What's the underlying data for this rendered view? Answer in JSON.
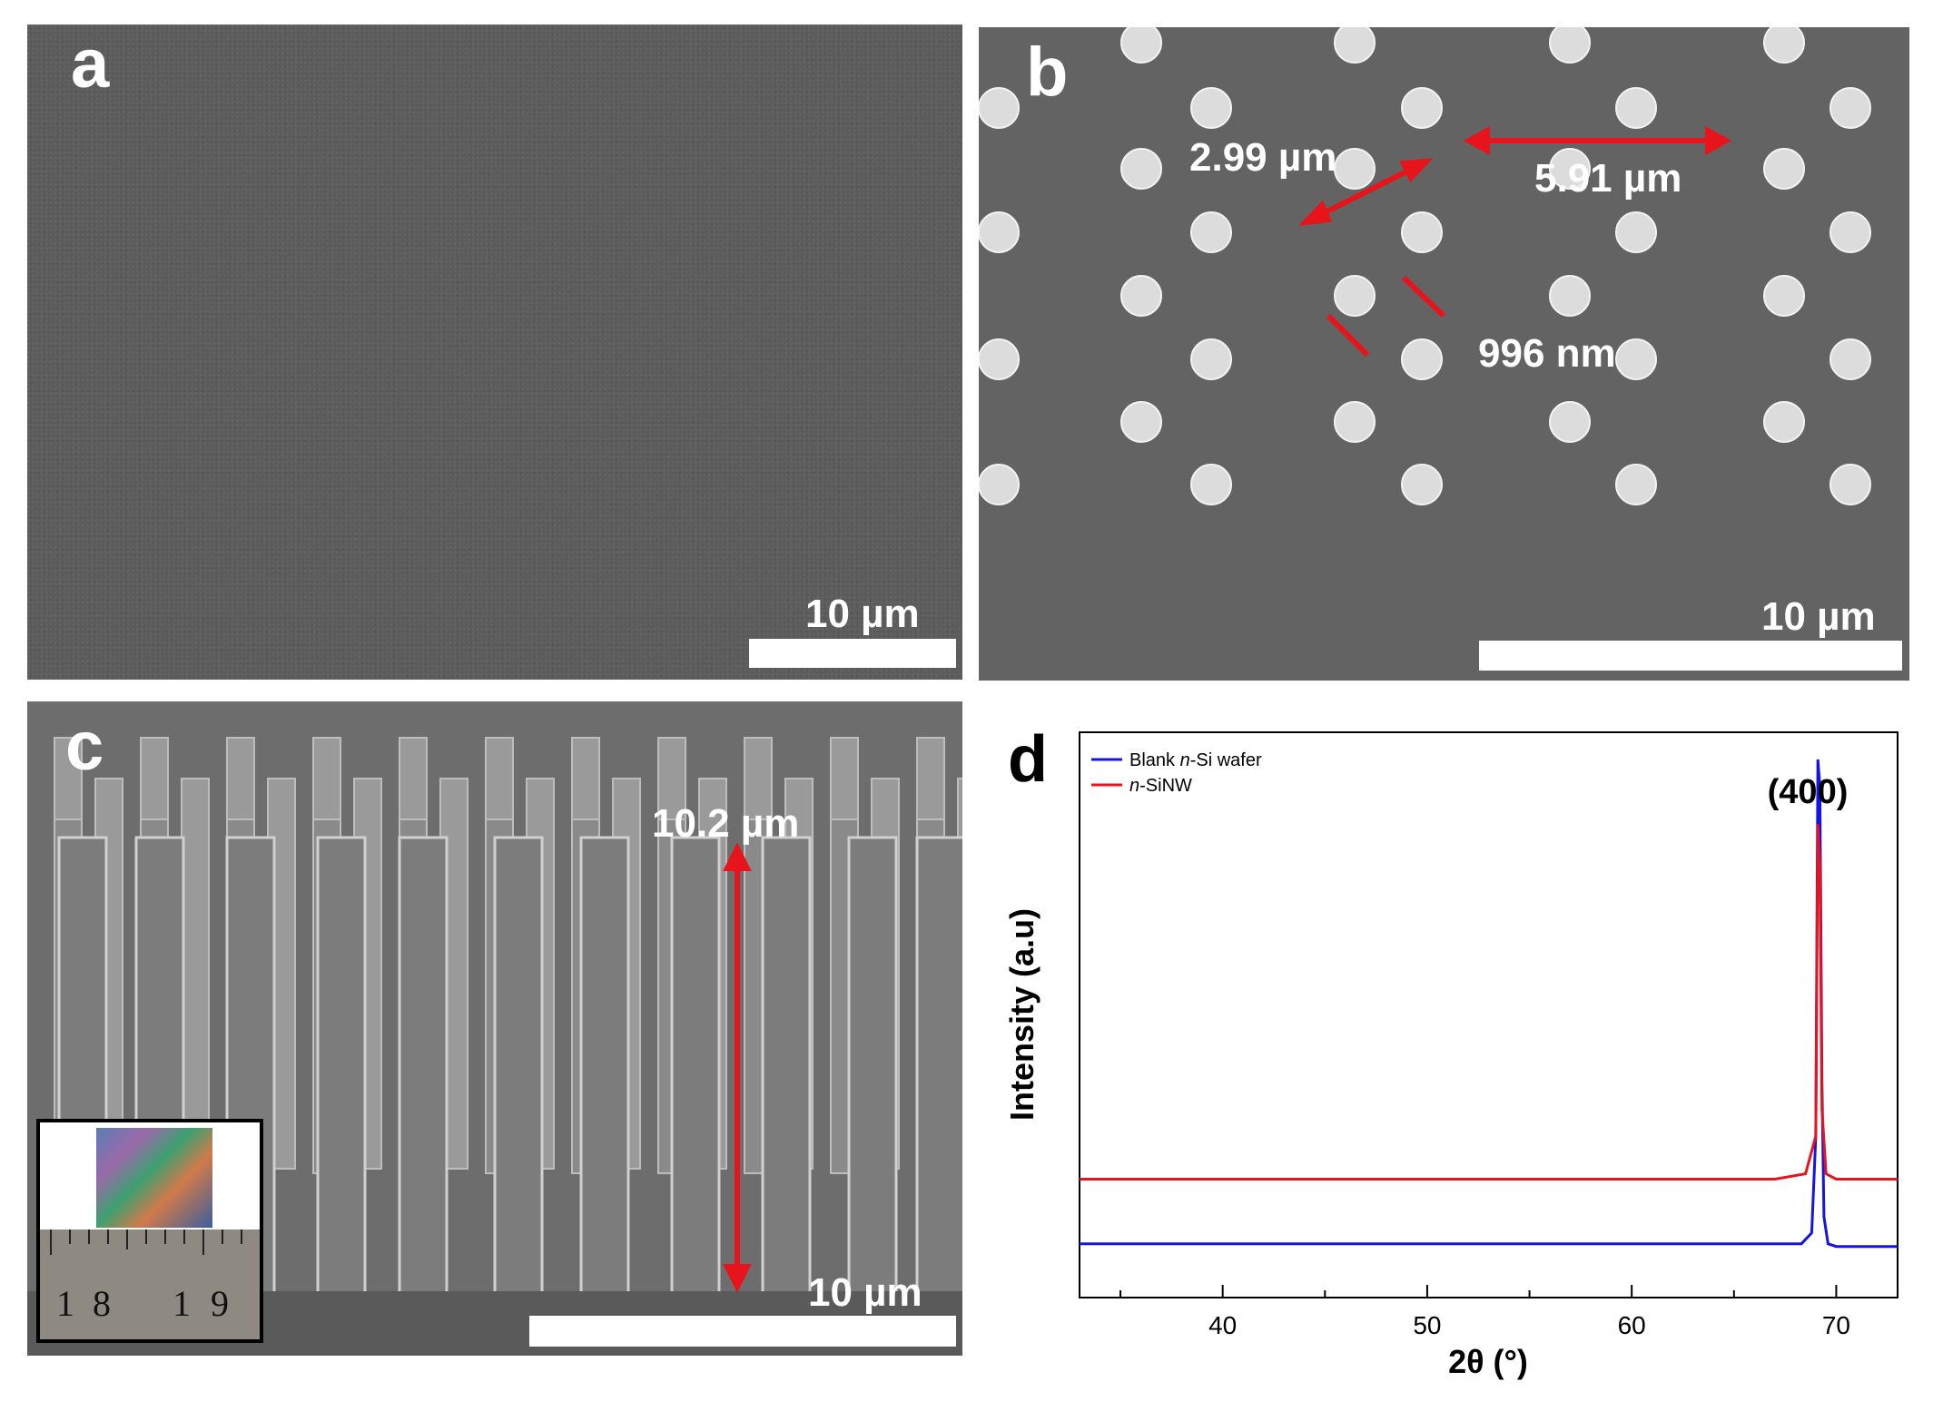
{
  "panels": {
    "a": {
      "letter": "a",
      "scale_bar": "10 µm"
    },
    "b": {
      "letter": "b",
      "scale_bar": "10 µm",
      "measurements": {
        "diagonal": "2.99 µm",
        "horizontal": "5.91 µm",
        "diameter": "996 nm"
      }
    },
    "c": {
      "letter": "c",
      "scale_bar": "10 µm",
      "height": "10.2 µm",
      "inset_ruler": [
        "1",
        "8",
        "1",
        "9"
      ]
    },
    "d": {
      "letter": "d"
    }
  },
  "colors": {
    "annotation_arrow": "#e8141b",
    "blank_series": "#1414e6",
    "sinw_series": "#e6141e"
  },
  "chart_data": {
    "type": "line",
    "xlabel": "2θ (°)",
    "ylabel": "Intensity (a.u)",
    "xlim": [
      33,
      73
    ],
    "xticks": [
      40,
      50,
      60,
      70
    ],
    "y_ticks_shown": false,
    "legend_placement": "top-left",
    "annotation": "(400)",
    "series": [
      {
        "name": "Blank n-Si wafer",
        "legend_plain": "Blank ",
        "legend_italic": "n",
        "legend_rest": "-Si wafer",
        "color": "#1414e6",
        "x": [
          33,
          68.3,
          68.8,
          69.0,
          69.1,
          69.2,
          69.3,
          69.4,
          69.6,
          70.0,
          73
        ],
        "y": [
          0.1,
          0.1,
          0.12,
          0.3,
          1.0,
          0.95,
          0.4,
          0.15,
          0.1,
          0.095,
          0.095
        ]
      },
      {
        "name": "n-SiNW",
        "legend_plain": "",
        "legend_italic": "n",
        "legend_rest": "-SiNW",
        "color": "#e6141e",
        "x": [
          33,
          67.0,
          68.5,
          69.0,
          69.1,
          69.2,
          69.3,
          69.5,
          70.0,
          73
        ],
        "y": [
          0.22,
          0.22,
          0.23,
          0.3,
          0.88,
          0.8,
          0.35,
          0.23,
          0.22,
          0.22
        ]
      }
    ]
  }
}
